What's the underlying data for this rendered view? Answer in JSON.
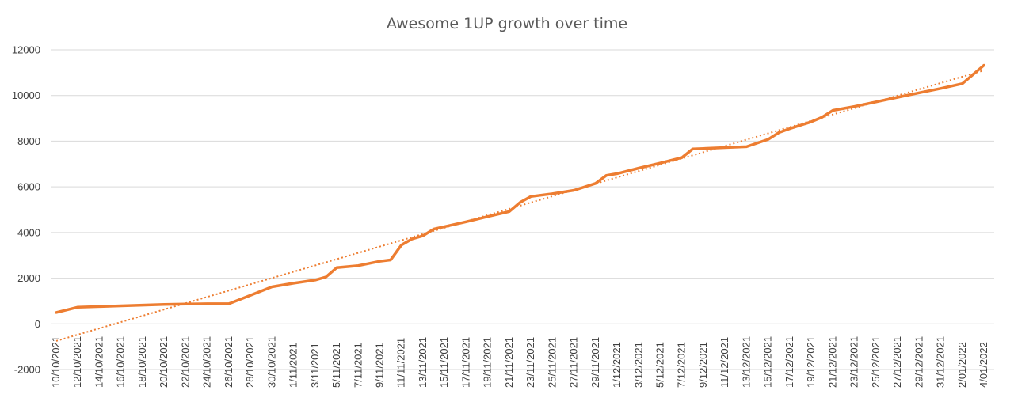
{
  "chart_data": {
    "type": "line",
    "title": "Awesome 1UP growth over time",
    "xlabel": "",
    "ylabel": "",
    "ylim": [
      -2000,
      12000
    ],
    "yticks": [
      -2000,
      0,
      2000,
      4000,
      6000,
      8000,
      10000,
      12000
    ],
    "xtick_labels": [
      "10/10/2021",
      "12/10/2021",
      "14/10/2021",
      "16/10/2021",
      "18/10/2021",
      "20/10/2021",
      "22/10/2021",
      "24/10/2021",
      "26/10/2021",
      "28/10/2021",
      "30/10/2021",
      "1/11/2021",
      "3/11/2021",
      "5/11/2021",
      "7/11/2021",
      "9/11/2021",
      "11/11/2021",
      "13/11/2021",
      "15/11/2021",
      "17/11/2021",
      "19/11/2021",
      "21/11/2021",
      "23/11/2021",
      "25/11/2021",
      "27/11/2021",
      "29/11/2021",
      "1/12/2021",
      "3/12/2021",
      "5/12/2021",
      "7/12/2021",
      "9/12/2021",
      "11/12/2021",
      "13/12/2021",
      "15/12/2021",
      "17/12/2021",
      "19/12/2021",
      "21/12/2021",
      "23/12/2021",
      "25/12/2021",
      "27/12/2021",
      "29/12/2021",
      "31/12/2021",
      "2/01/2022",
      "4/01/2022"
    ],
    "grid": true,
    "legend": "none",
    "colors": {
      "series": "#ED7D31",
      "grid": "#D9D9D9",
      "text": "#404040",
      "title": "#595959"
    },
    "series": [
      {
        "x": [
          "10/10/2021",
          "12/10/2021",
          "14/10/2021",
          "16/10/2021",
          "18/10/2021",
          "20/10/2021",
          "22/10/2021",
          "24/10/2021",
          "26/10/2021",
          "28/10/2021",
          "30/10/2021",
          "1/11/2021",
          "3/11/2021",
          "4/11/2021",
          "5/11/2021",
          "7/11/2021",
          "9/11/2021",
          "10/11/2021",
          "11/11/2021",
          "12/11/2021",
          "13/11/2021",
          "14/11/2021",
          "15/11/2021",
          "17/11/2021",
          "19/11/2021",
          "21/11/2021",
          "22/11/2021",
          "23/11/2021",
          "25/11/2021",
          "27/11/2021",
          "29/11/2021",
          "30/11/2021",
          "1/12/2021",
          "3/12/2021",
          "5/12/2021",
          "7/12/2021",
          "8/12/2021",
          "9/12/2021",
          "11/12/2021",
          "13/12/2021",
          "15/12/2021",
          "16/12/2021",
          "17/12/2021",
          "19/12/2021",
          "20/12/2021",
          "21/12/2021",
          "23/12/2021",
          "25/12/2021",
          "27/12/2021",
          "29/12/2021",
          "31/12/2021",
          "2/01/2022",
          "4/01/2022"
        ],
        "values": [
          500,
          730,
          760,
          790,
          820,
          850,
          870,
          880,
          880,
          1250,
          1620,
          1780,
          1920,
          2050,
          2460,
          2550,
          2740,
          2800,
          3450,
          3720,
          3860,
          4150,
          4260,
          4470,
          4700,
          4920,
          5320,
          5580,
          5700,
          5850,
          6150,
          6500,
          6580,
          6820,
          7040,
          7280,
          7660,
          7680,
          7720,
          7760,
          8080,
          8380,
          8550,
          8850,
          9050,
          9350,
          9520,
          9720,
          9920,
          10120,
          10310,
          10520,
          11320
        ]
      }
    ],
    "trendline": {
      "type": "linear",
      "style": "dotted",
      "start_value": -750,
      "end_value": 11100
    }
  }
}
